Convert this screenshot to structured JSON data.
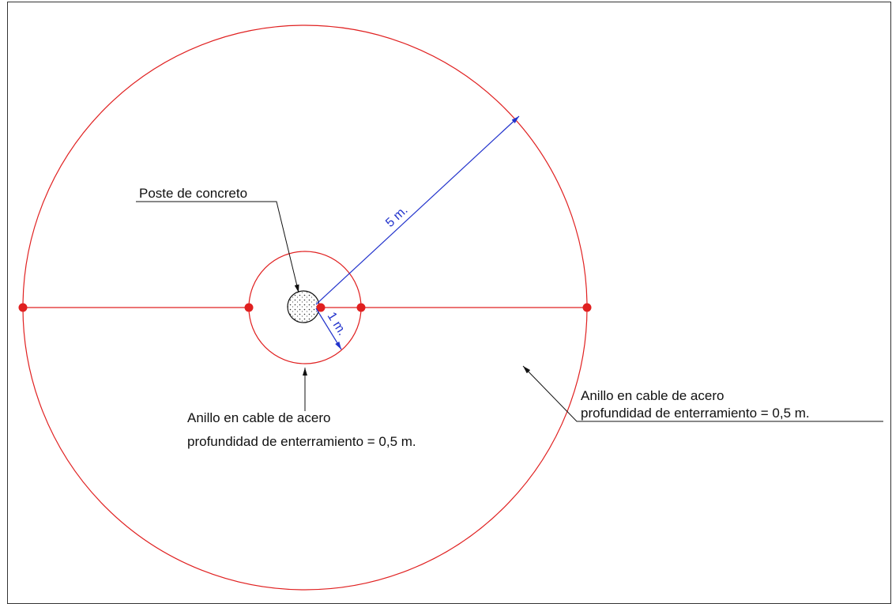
{
  "labels": {
    "pole": "Poste de concreto",
    "radius_outer": "5 m.",
    "radius_inner": "1 m.",
    "inner_ring": {
      "line1": "Anillo en cable de acero",
      "line2": "profundidad de enterramiento = 0,5 m."
    },
    "outer_ring": {
      "line1": "Anillo en cable de acero",
      "line2": "profundidad de enterramiento = 0,5 m."
    }
  }
}
